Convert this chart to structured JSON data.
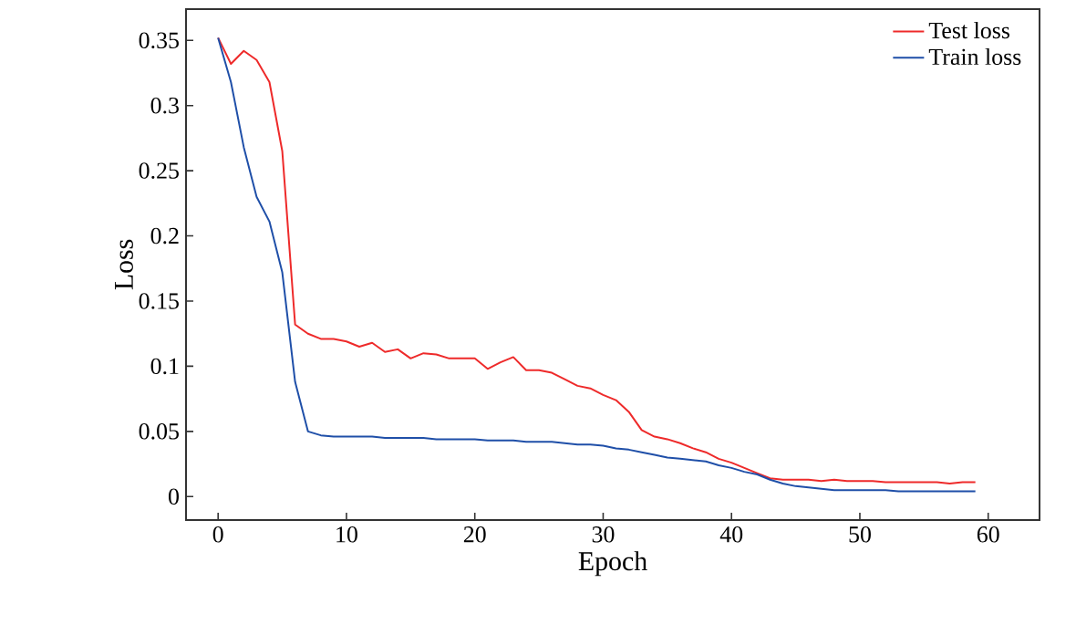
{
  "chart_data": {
    "type": "line",
    "xlabel": "Epoch",
    "ylabel": "Loss",
    "x": [
      0,
      1,
      2,
      3,
      4,
      5,
      6,
      7,
      8,
      9,
      10,
      11,
      12,
      13,
      14,
      15,
      16,
      17,
      18,
      19,
      20,
      21,
      22,
      23,
      24,
      25,
      26,
      27,
      28,
      29,
      30,
      31,
      32,
      33,
      34,
      35,
      36,
      37,
      38,
      39,
      40,
      41,
      42,
      43,
      44,
      45,
      46,
      47,
      48,
      49,
      50,
      51,
      52,
      53,
      54,
      55,
      56,
      57,
      58,
      59
    ],
    "series": [
      {
        "name": "Test loss",
        "color": "#ee2a2a",
        "values": [
          0.352,
          0.332,
          0.342,
          0.335,
          0.318,
          0.265,
          0.132,
          0.125,
          0.121,
          0.121,
          0.119,
          0.115,
          0.118,
          0.111,
          0.113,
          0.106,
          0.11,
          0.109,
          0.106,
          0.106,
          0.106,
          0.098,
          0.103,
          0.107,
          0.097,
          0.097,
          0.095,
          0.09,
          0.085,
          0.083,
          0.078,
          0.074,
          0.065,
          0.051,
          0.046,
          0.044,
          0.041,
          0.037,
          0.034,
          0.029,
          0.026,
          0.022,
          0.018,
          0.014,
          0.013,
          0.013,
          0.013,
          0.012,
          0.013,
          0.012,
          0.012,
          0.012,
          0.011,
          0.011,
          0.011,
          0.011,
          0.011,
          0.01,
          0.011,
          0.011
        ]
      },
      {
        "name": "Train loss",
        "color": "#1f4fa8",
        "values": [
          0.352,
          0.318,
          0.268,
          0.23,
          0.211,
          0.172,
          0.088,
          0.05,
          0.047,
          0.046,
          0.046,
          0.046,
          0.046,
          0.045,
          0.045,
          0.045,
          0.045,
          0.044,
          0.044,
          0.044,
          0.044,
          0.043,
          0.043,
          0.043,
          0.042,
          0.042,
          0.042,
          0.041,
          0.04,
          0.04,
          0.039,
          0.037,
          0.036,
          0.034,
          0.032,
          0.03,
          0.029,
          0.028,
          0.027,
          0.024,
          0.022,
          0.019,
          0.017,
          0.013,
          0.01,
          0.008,
          0.007,
          0.006,
          0.005,
          0.005,
          0.005,
          0.005,
          0.005,
          0.004,
          0.004,
          0.004,
          0.004,
          0.004,
          0.004,
          0.004
        ]
      }
    ],
    "xlim": [
      -2.5,
      64
    ],
    "ylim": [
      -0.018,
      0.374
    ],
    "xticks": [
      0,
      10,
      20,
      30,
      40,
      50,
      60
    ],
    "yticks": [
      0,
      0.05,
      0.1,
      0.15,
      0.2,
      0.25,
      0.3,
      0.35
    ],
    "legend": "top right",
    "grid": false,
    "marker": "none",
    "line_style": "solid"
  }
}
